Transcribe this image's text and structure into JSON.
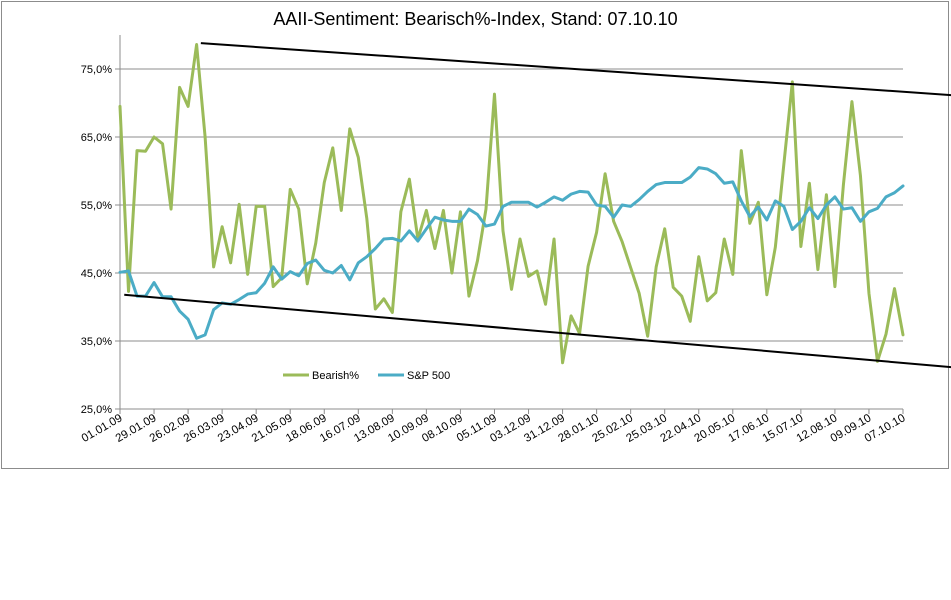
{
  "chart_data": {
    "type": "line",
    "title": "AAII-Sentiment:  Bearisch%-Index,  Stand: 07.10.10",
    "ylim": [
      25,
      80
    ],
    "yticks": [
      25,
      35,
      45,
      55,
      65,
      75
    ],
    "ytick_labels": [
      "25,0%",
      "35,0%",
      "45,0%",
      "55,0%",
      "65,0%",
      "75,0%"
    ],
    "x_labels": [
      "01.01.09",
      "29.01.09",
      "26.02.09",
      "26.03.09",
      "23.04.09",
      "21.05.09",
      "18.06.09",
      "16.07.09",
      "13.08.09",
      "10.09.09",
      "08.10.09",
      "05.11.09",
      "03.12.09",
      "31.12.09",
      "28.01.10",
      "25.02.10",
      "25.03.10",
      "22.04.10",
      "20.05.10",
      "17.06.10",
      "15.07.10",
      "12.08.10",
      "09.09.10",
      "07.10.10"
    ],
    "legend": "lower-left",
    "series": [
      {
        "name": "Bearish%",
        "color": "#9bbb59",
        "values": [
          69.5,
          42.3,
          63.0,
          62.9,
          65.0,
          64.0,
          54.4,
          72.3,
          69.5,
          78.6,
          65.0,
          45.9,
          51.8,
          46.5,
          55.1,
          44.8,
          54.8,
          54.8,
          43.0,
          44.3,
          57.3,
          54.4,
          43.4,
          49.4,
          58.3,
          63.4,
          54.2,
          66.2,
          62.0,
          53.0,
          39.7,
          41.2,
          39.2,
          54.0,
          58.8,
          50.0,
          54.2,
          48.6,
          54.2,
          45.0,
          54.0,
          41.6,
          46.8,
          54.4,
          71.3,
          51.2,
          42.6,
          50.0,
          44.5,
          45.3,
          40.4,
          50.0,
          31.8,
          38.7,
          36.1,
          46.0,
          51.0,
          59.6,
          52.6,
          49.6,
          45.8,
          42.0,
          35.7,
          45.9,
          51.5,
          42.9,
          41.6,
          37.9,
          47.4,
          40.9,
          42.1,
          50.0,
          44.8,
          63.0,
          52.3,
          55.4,
          41.8,
          48.8,
          61.0,
          73.1,
          48.9,
          58.2,
          45.5,
          56.5,
          43.0,
          58.0,
          70.2,
          59.3,
          42.0,
          32.0,
          36.0,
          42.7,
          35.9
        ]
      },
      {
        "name": "S&P 500",
        "color": "#4bacc6",
        "values": [
          45.1,
          45.3,
          41.6,
          41.6,
          43.6,
          41.5,
          41.5,
          39.4,
          38.2,
          35.4,
          35.9,
          39.6,
          40.6,
          40.4,
          41.1,
          41.9,
          42.1,
          43.5,
          45.9,
          44.1,
          45.2,
          44.6,
          46.4,
          46.9,
          45.4,
          45.0,
          46.1,
          44.0,
          46.5,
          47.4,
          48.6,
          50.0,
          50.1,
          49.7,
          51.2,
          49.7,
          51.5,
          53.2,
          52.8,
          52.6,
          52.6,
          54.4,
          53.6,
          51.9,
          52.2,
          54.8,
          55.4,
          55.4,
          55.4,
          54.7,
          55.4,
          56.2,
          55.7,
          56.6,
          57.0,
          56.9,
          55.0,
          54.8,
          53.2,
          55.0,
          54.8,
          55.8,
          57.0,
          58.0,
          58.3,
          58.3,
          58.3,
          59.1,
          60.5,
          60.3,
          59.6,
          58.2,
          58.4,
          55.6,
          53.3,
          54.7,
          52.8,
          55.6,
          54.8,
          51.4,
          52.6,
          54.6,
          53.0,
          55.0,
          56.2,
          54.4,
          54.6,
          52.6,
          54.0,
          54.5,
          56.2,
          56.8,
          57.8
        ]
      }
    ],
    "trendlines": [
      {
        "name": "upper-trendline",
        "color": "#000000",
        "from": [
          9.5,
          78.8
        ],
        "to": [
          118,
          69.4
        ]
      },
      {
        "name": "lower-trendline",
        "color": "#000000",
        "from": [
          0.5,
          41.8
        ],
        "to": [
          121,
          28.6
        ]
      }
    ]
  }
}
